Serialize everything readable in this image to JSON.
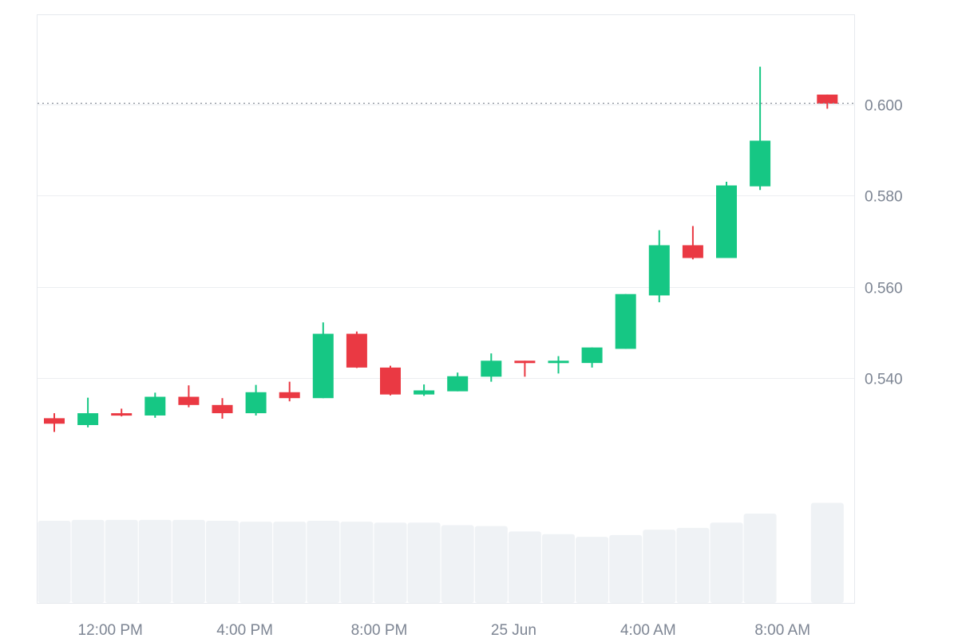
{
  "chart_data": {
    "type": "candlestick",
    "title": "",
    "xlabel": "",
    "ylabel": "",
    "x_unit": "hour",
    "x_tick_labels": [
      "12:00 PM",
      "4:00 PM",
      "8:00 PM",
      "25 Jun",
      "4:00 AM",
      "8:00 AM"
    ],
    "x_tick_positions": [
      12,
      16,
      20,
      24,
      28,
      32
    ],
    "y_tick_labels": [
      "0.540",
      "0.560",
      "0.580",
      "0.600"
    ],
    "y_tick_values": [
      0.54,
      0.56,
      0.58,
      0.6
    ],
    "ylim": [
      0.5145,
      0.6195
    ],
    "xlim": [
      9.5,
      34.0
    ],
    "current_price_line": 0.6002,
    "up_color": "#16c784",
    "down_color": "#ea3943",
    "volume_color": "#eff2f5",
    "candles": [
      {
        "x": 10,
        "open": 0.5312,
        "high": 0.5323,
        "low": 0.5282,
        "close": 0.53
      },
      {
        "x": 11,
        "open": 0.5297,
        "high": 0.5357,
        "low": 0.5292,
        "close": 0.5323
      },
      {
        "x": 12,
        "open": 0.5323,
        "high": 0.5333,
        "low": 0.5316,
        "close": 0.5318
      },
      {
        "x": 13,
        "open": 0.5318,
        "high": 0.5368,
        "low": 0.5313,
        "close": 0.5359
      },
      {
        "x": 14,
        "open": 0.5359,
        "high": 0.5384,
        "low": 0.5336,
        "close": 0.5341
      },
      {
        "x": 15,
        "open": 0.5341,
        "high": 0.5356,
        "low": 0.5311,
        "close": 0.5323
      },
      {
        "x": 16,
        "open": 0.5323,
        "high": 0.5385,
        "low": 0.5318,
        "close": 0.5369
      },
      {
        "x": 17,
        "open": 0.5369,
        "high": 0.5392,
        "low": 0.5349,
        "close": 0.5356
      },
      {
        "x": 18,
        "open": 0.5356,
        "high": 0.5522,
        "low": 0.5356,
        "close": 0.5497
      },
      {
        "x": 19,
        "open": 0.5497,
        "high": 0.5502,
        "low": 0.5422,
        "close": 0.5423
      },
      {
        "x": 20,
        "open": 0.5423,
        "high": 0.5427,
        "low": 0.5362,
        "close": 0.5364
      },
      {
        "x": 21,
        "open": 0.5364,
        "high": 0.5386,
        "low": 0.5361,
        "close": 0.5373
      },
      {
        "x": 22,
        "open": 0.5371,
        "high": 0.5412,
        "low": 0.5371,
        "close": 0.5404
      },
      {
        "x": 23,
        "open": 0.5403,
        "high": 0.5454,
        "low": 0.5392,
        "close": 0.5438
      },
      {
        "x": 24,
        "open": 0.5438,
        "high": 0.5438,
        "low": 0.5403,
        "close": 0.5433
      },
      {
        "x": 25,
        "open": 0.5433,
        "high": 0.5448,
        "low": 0.541,
        "close": 0.5438
      },
      {
        "x": 26,
        "open": 0.5433,
        "high": 0.5467,
        "low": 0.5423,
        "close": 0.5467
      },
      {
        "x": 27,
        "open": 0.5464,
        "high": 0.5584,
        "low": 0.5464,
        "close": 0.5584
      },
      {
        "x": 28,
        "open": 0.5581,
        "high": 0.5724,
        "low": 0.5566,
        "close": 0.5691
      },
      {
        "x": 29,
        "open": 0.5691,
        "high": 0.5733,
        "low": 0.566,
        "close": 0.5663
      },
      {
        "x": 30,
        "open": 0.5663,
        "high": 0.583,
        "low": 0.5663,
        "close": 0.5822
      },
      {
        "x": 31,
        "open": 0.582,
        "high": 0.6082,
        "low": 0.5812,
        "close": 0.592
      },
      {
        "x": 33,
        "open": 0.6021,
        "high": 0.6021,
        "low": 0.599,
        "close": 0.6001
      }
    ],
    "volume_relative": [
      0.92,
      0.93,
      0.93,
      0.93,
      0.93,
      0.92,
      0.91,
      0.91,
      0.92,
      0.91,
      0.9,
      0.9,
      0.87,
      0.86,
      0.8,
      0.77,
      0.74,
      0.76,
      0.82,
      0.84,
      0.9,
      1.0,
      0.0,
      1.12
    ]
  }
}
